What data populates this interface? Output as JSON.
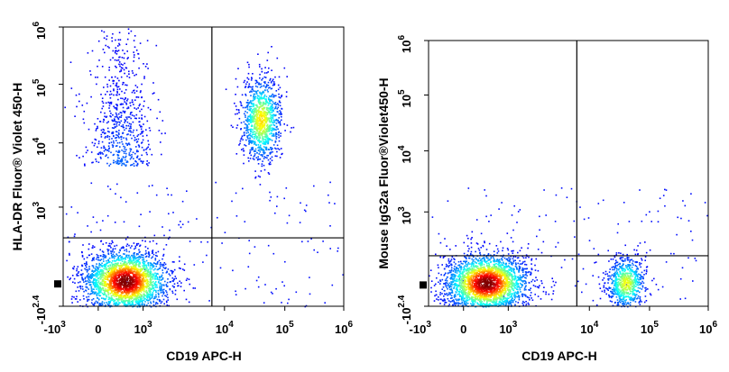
{
  "chart_data": [
    {
      "type": "scatter",
      "title": "",
      "xlabel": "CD19 APC-H",
      "ylabel": "HLA-DR  Fluor® Violet 450-H",
      "x_scale": "biexponential",
      "y_scale": "biexponential",
      "x_ticks": [
        {
          "value": -1000,
          "base": "-10",
          "exp": "3"
        },
        {
          "value": 0,
          "base": "0",
          "exp": ""
        },
        {
          "value": 1000,
          "base": "10",
          "exp": "3"
        },
        {
          "value": 10000,
          "base": "10",
          "exp": "4"
        },
        {
          "value": 100000,
          "base": "10",
          "exp": "5"
        },
        {
          "value": 1000000,
          "base": "10",
          "exp": "6"
        }
      ],
      "y_ticks": [
        {
          "value": -251,
          "base": "-10",
          "exp": "2.4"
        },
        {
          "value": 1000,
          "base": "10",
          "exp": "3"
        },
        {
          "value": 10000,
          "base": "10",
          "exp": "4"
        },
        {
          "value": 100000,
          "base": "10",
          "exp": "5"
        },
        {
          "value": 1000000,
          "base": "10",
          "exp": "6"
        }
      ],
      "quadrant_gate": {
        "x": 7000,
        "y": 600
      },
      "populations": [
        {
          "name": "",
          "x_center": 600,
          "y_center": 40,
          "spread": "dense",
          "density": 1.0
        },
        {
          "name": "",
          "x_center": 500,
          "y_center": 3000,
          "spread": "tail",
          "density": 0.35
        },
        {
          "name": "",
          "x_center": 40000,
          "y_center": 25000,
          "spread": "elongated",
          "density": 0.6
        }
      ],
      "grid": false,
      "legend": "none"
    },
    {
      "type": "scatter",
      "title": "",
      "xlabel": "CD19 APC-H",
      "ylabel": "Mouse IgG2a  Fluor®Violet450-H",
      "x_scale": "biexponential",
      "y_scale": "biexponential",
      "x_ticks": [
        {
          "value": -1000,
          "base": "-10",
          "exp": "3"
        },
        {
          "value": 0,
          "base": "0",
          "exp": ""
        },
        {
          "value": 1000,
          "base": "10",
          "exp": "3"
        },
        {
          "value": 10000,
          "base": "10",
          "exp": "4"
        },
        {
          "value": 100000,
          "base": "10",
          "exp": "5"
        },
        {
          "value": 1000000,
          "base": "10",
          "exp": "6"
        }
      ],
      "y_ticks": [
        {
          "value": -251,
          "base": "-10",
          "exp": "2.4"
        },
        {
          "value": 1000,
          "base": "10",
          "exp": "3"
        },
        {
          "value": 10000,
          "base": "10",
          "exp": "4"
        },
        {
          "value": 100000,
          "base": "10",
          "exp": "5"
        },
        {
          "value": 1000000,
          "base": "10",
          "exp": "6"
        }
      ],
      "quadrant_gate": {
        "x": 7000,
        "y": 400
      },
      "populations": [
        {
          "name": "",
          "x_center": 500,
          "y_center": 30,
          "spread": "dense",
          "density": 1.0
        },
        {
          "name": "",
          "x_center": 40000,
          "y_center": 30,
          "spread": "compact",
          "density": 0.55
        }
      ],
      "grid": false,
      "legend": "none"
    }
  ]
}
